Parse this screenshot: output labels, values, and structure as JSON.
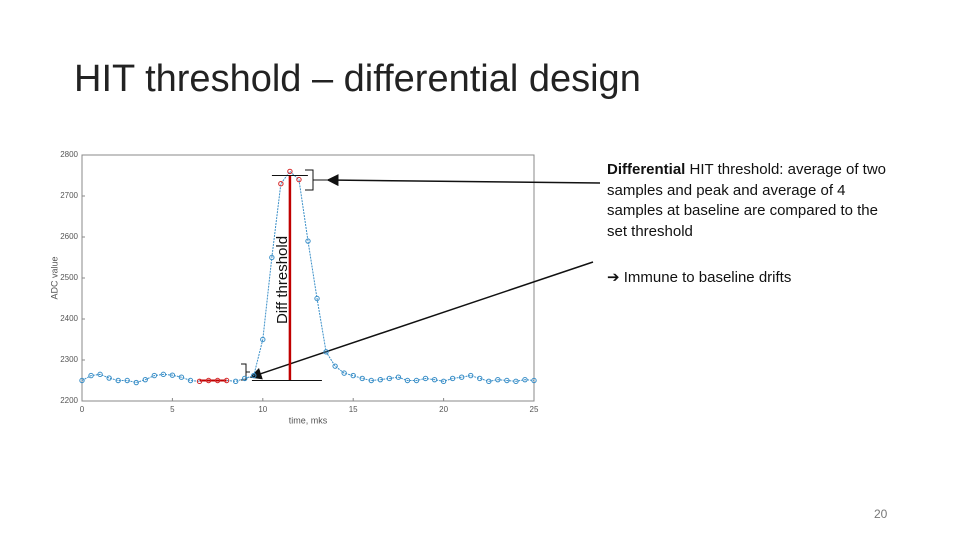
{
  "title": "HIT threshold – differential design",
  "text": {
    "bold_word": "Differential",
    "rest": " HIT threshold: average of two samples and peak and average of 4 samples at baseline are compared to the set threshold",
    "arrow": "➔",
    "bullet": " Immune to baseline drifts"
  },
  "page_number": "20",
  "chart_data": {
    "type": "line",
    "xlabel": "time, mks",
    "ylabel": "ADC value",
    "annotation": "Diff threshold",
    "x": [
      0,
      0.5,
      1,
      1.5,
      2,
      2.5,
      3,
      3.5,
      4,
      4.5,
      5,
      5.5,
      6,
      6.5,
      7,
      7.5,
      8,
      8.5,
      9,
      9.5,
      10,
      10.5,
      11,
      11.5,
      12,
      12.5,
      13,
      13.5,
      14,
      14.5,
      15,
      15.5,
      16,
      16.5,
      17,
      17.5,
      18,
      18.5,
      19,
      19.5,
      20,
      20.5,
      21,
      21.5,
      22,
      22.5,
      23,
      23.5,
      24,
      24.5,
      25
    ],
    "values": [
      2250,
      2262,
      2265,
      2256,
      2250,
      2250,
      2245,
      2252,
      2262,
      2265,
      2263,
      2258,
      2250,
      2248,
      2250,
      2250,
      2250,
      2248,
      2255,
      2262,
      2350,
      2550,
      2730,
      2760,
      2740,
      2590,
      2450,
      2320,
      2285,
      2268,
      2262,
      2255,
      2250,
      2252,
      2255,
      2258,
      2250,
      2250,
      2255,
      2252,
      2248,
      2255,
      2258,
      2262,
      2255,
      2248,
      2252,
      2250,
      2248,
      2252,
      2250
    ],
    "color": "#3a8fc8",
    "point_colors": [
      "#3a8fc8",
      "#3a8fc8",
      "#3a8fc8",
      "#3a8fc8",
      "#3a8fc8",
      "#3a8fc8",
      "#3a8fc8",
      "#3a8fc8",
      "#3a8fc8",
      "#3a8fc8",
      "#3a8fc8",
      "#3a8fc8",
      "#3a8fc8",
      "#d62728",
      "#d62728",
      "#d62728",
      "#d62728",
      "#3a8fc8",
      "#3a8fc8",
      "#3a8fc8",
      "#3a8fc8",
      "#3a8fc8",
      "#d62728",
      "#d62728",
      "#d62728",
      "#3a8fc8",
      "#3a8fc8",
      "#3a8fc8",
      "#3a8fc8",
      "#3a8fc8",
      "#3a8fc8",
      "#3a8fc8",
      "#3a8fc8",
      "#3a8fc8",
      "#3a8fc8",
      "#3a8fc8",
      "#3a8fc8",
      "#3a8fc8",
      "#3a8fc8",
      "#3a8fc8",
      "#3a8fc8",
      "#3a8fc8",
      "#3a8fc8",
      "#3a8fc8",
      "#3a8fc8",
      "#3a8fc8",
      "#3a8fc8",
      "#3a8fc8",
      "#3a8fc8",
      "#3a8fc8",
      "#3a8fc8"
    ],
    "threshold": {
      "x": 11.5,
      "low": 2250,
      "high": 2750,
      "color": "#c00000"
    },
    "baseline_window": [
      6.5,
      8
    ],
    "xlim": [
      0,
      25
    ],
    "xticks": [
      0,
      5,
      10,
      15,
      20,
      25
    ],
    "ylim": [
      2200,
      2800
    ],
    "yticks": [
      2200,
      2300,
      2400,
      2500,
      2600,
      2700,
      2800
    ]
  }
}
